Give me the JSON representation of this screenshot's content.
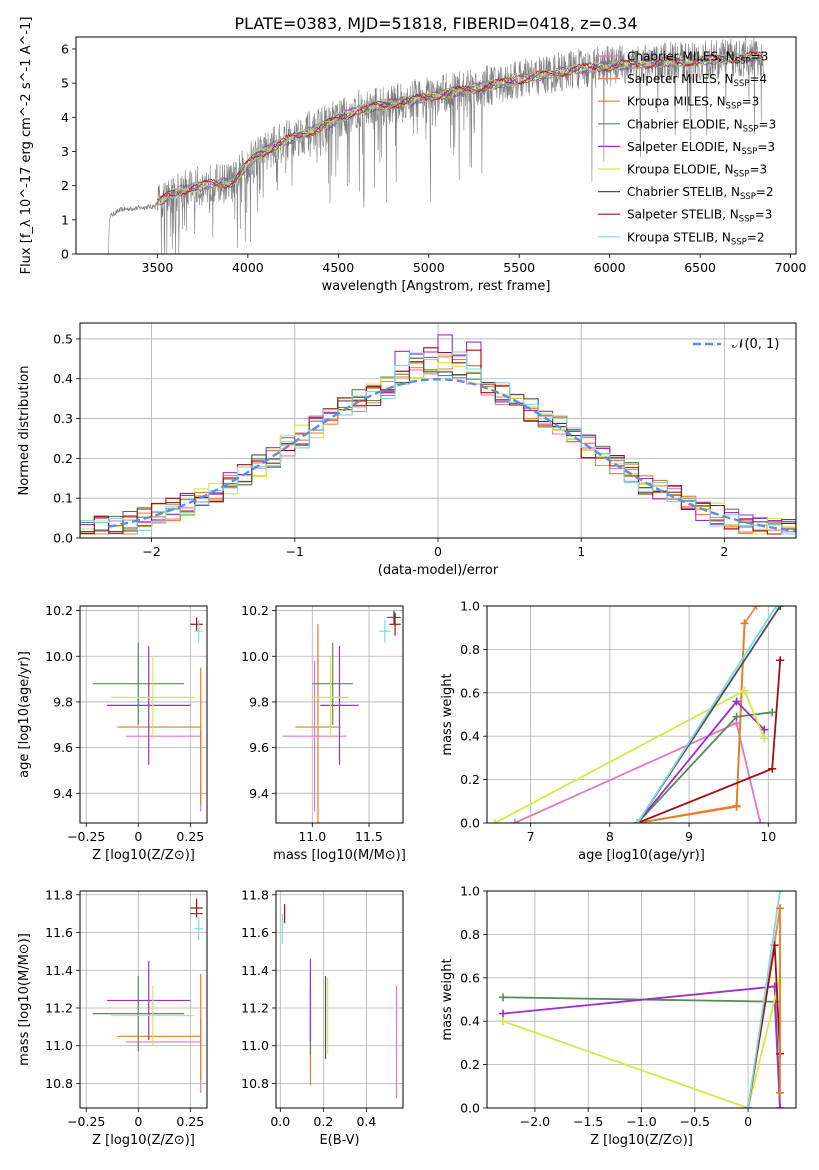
{
  "figure": {
    "title": "PLATE=0383, MJD=51818, FIBERID=0418, z=0.34"
  },
  "models": [
    {
      "name": "Chabrier MILES",
      "nssp": "3",
      "color": "#e377c2"
    },
    {
      "name": "Salpeter MILES",
      "nssp": "4",
      "color": "#ff7f50"
    },
    {
      "name": "Kroupa MILES",
      "nssp": "3",
      "color": "#e08020"
    },
    {
      "name": "Chabrier ELODIE",
      "nssp": "3",
      "color": "#5a8a5a"
    },
    {
      "name": "Salpeter ELODIE",
      "nssp": "3",
      "color": "#9b30c8"
    },
    {
      "name": "Kroupa ELODIE",
      "nssp": "3",
      "color": "#d4e84a"
    },
    {
      "name": "Chabrier STELIB",
      "nssp": "2",
      "color": "#505050"
    },
    {
      "name": "Salpeter STELIB",
      "nssp": "3",
      "color": "#a01010"
    },
    {
      "name": "Kroupa STELIB",
      "nssp": "2",
      "color": "#80d8e0"
    }
  ],
  "chart_data": [
    {
      "id": "spectrum",
      "type": "line",
      "xlabel": "wavelength [Angstrom, rest frame]",
      "ylabel": "Flux [f_λ 10^-17 erg cm^-2 s^-1 A^-1]",
      "xlim": [
        3050,
        7030
      ],
      "ylim": [
        0,
        6.35
      ],
      "xticks": [
        3500,
        4000,
        4500,
        5000,
        5500,
        6000,
        6500,
        7000
      ],
      "yticks": [
        0,
        1,
        2,
        3,
        4,
        5,
        6
      ],
      "legend": "right",
      "grid": false,
      "observed": {
        "color": "#808080",
        "x_range": [
          3230,
          6850
        ],
        "continuum_knots": [
          [
            3230,
            0
          ],
          [
            3235,
            1.1
          ],
          [
            3300,
            1.3
          ],
          [
            3400,
            1.35
          ],
          [
            3490,
            1.4
          ],
          [
            3500,
            1.5
          ],
          [
            3600,
            1.8
          ],
          [
            3700,
            1.95
          ],
          [
            3800,
            2.05
          ],
          [
            3920,
            2.1
          ],
          [
            3960,
            2.4
          ],
          [
            4050,
            2.9
          ],
          [
            4200,
            3.3
          ],
          [
            4400,
            3.7
          ],
          [
            4600,
            4.2
          ],
          [
            4800,
            4.4
          ],
          [
            5000,
            4.6
          ],
          [
            5200,
            4.8
          ],
          [
            5500,
            5.1
          ],
          [
            5800,
            5.4
          ],
          [
            6000,
            5.5
          ],
          [
            6300,
            5.6
          ],
          [
            6600,
            5.7
          ],
          [
            6850,
            5.8
          ]
        ]
      },
      "model_fit_range": [
        3500,
        6850
      ]
    },
    {
      "id": "residuals",
      "type": "histogram",
      "xlabel": "(data-model)/error",
      "ylabel": "Normed distribution",
      "xlim": [
        -2.5,
        2.5
      ],
      "ylim": [
        0,
        0.54
      ],
      "xticks": [
        -2,
        -1,
        0,
        1,
        2
      ],
      "yticks": [
        0.0,
        0.1,
        0.2,
        0.3,
        0.4,
        0.5
      ],
      "grid": true,
      "bin_width": 0.1,
      "legend": [
        {
          "label": "𝒩(0, 1)",
          "color": "#5b8fe0",
          "style": "dashed"
        }
      ],
      "normal": {
        "mean": 0,
        "sigma": 1
      },
      "series_peaks": [
        0.44,
        0.46,
        0.45,
        0.46,
        0.52,
        0.45,
        0.45,
        0.48,
        0.48
      ]
    },
    {
      "id": "age-vs-Z",
      "type": "errorbar",
      "xlabel": "Z [log10(Z/Z⊙)]",
      "ylabel": "age [log10(age/yr)]",
      "xlim": [
        -0.28,
        0.33
      ],
      "ylim": [
        9.27,
        10.22
      ],
      "xticks": [
        -0.25,
        0.0,
        0.25
      ],
      "yticks": [
        9.4,
        9.6,
        9.8,
        10.0,
        10.2
      ],
      "points": [
        {
          "model": 0,
          "x": 0.12,
          "xerr": 0.18,
          "y": 9.65,
          "yerr": 0.0
        },
        {
          "model": 0,
          "x": 0.3,
          "xerr": 0.0,
          "y": 9.5,
          "yerr": 0.18
        },
        {
          "model": 2,
          "x": 0.3,
          "xerr": 0.0,
          "y": 9.65,
          "yerr": 0.3
        },
        {
          "model": 2,
          "x": 0.1,
          "xerr": 0.2,
          "y": 9.69,
          "yerr": 0.0
        },
        {
          "model": 3,
          "x": 0.0,
          "xerr": 0.22,
          "y": 9.88,
          "yerr": 0.18
        },
        {
          "model": 4,
          "x": 0.05,
          "xerr": 0.2,
          "y": 9.785,
          "yerr": 0.26
        },
        {
          "model": 5,
          "x": 0.07,
          "xerr": 0.2,
          "y": 9.82,
          "yerr": 0.18
        },
        {
          "model": 7,
          "x": 0.28,
          "xerr": 0.03,
          "y": 10.14,
          "yerr": 0.03
        },
        {
          "model": 8,
          "x": 0.29,
          "xerr": 0.02,
          "y": 10.11,
          "yerr": 0.05
        }
      ]
    },
    {
      "id": "age-vs-mass",
      "type": "errorbar",
      "xlabel": "mass [log10(M/M⊙)]",
      "ylabel": "",
      "xlim": [
        10.68,
        11.8
      ],
      "ylim": [
        9.27,
        10.22
      ],
      "xticks": [
        11.0,
        11.5
      ],
      "yticks": [
        9.4,
        9.6,
        9.8,
        10.0,
        10.2
      ],
      "points": [
        {
          "model": 0,
          "x": 11.02,
          "xerr": 0.28,
          "y": 9.65,
          "yerr": 0.33
        },
        {
          "model": 2,
          "x": 11.05,
          "xerr": 0.2,
          "y": 9.69,
          "yerr": 0.45
        },
        {
          "model": 3,
          "x": 11.18,
          "xerr": 0.18,
          "y": 9.88,
          "yerr": 0.18
        },
        {
          "model": 4,
          "x": 11.24,
          "xerr": 0.17,
          "y": 9.785,
          "yerr": 0.26
        },
        {
          "model": 5,
          "x": 11.16,
          "xerr": 0.16,
          "y": 9.82,
          "yerr": 0.18
        },
        {
          "model": 6,
          "x": 11.72,
          "xerr": 0.06,
          "y": 10.17,
          "yerr": 0.03
        },
        {
          "model": 7,
          "x": 11.73,
          "xerr": 0.05,
          "y": 10.14,
          "yerr": 0.05
        },
        {
          "model": 8,
          "x": 11.64,
          "xerr": 0.05,
          "y": 10.11,
          "yerr": 0.05
        }
      ]
    },
    {
      "id": "mass-weight-vs-age",
      "type": "line",
      "xlabel": "age [log10(age/yr)]",
      "ylabel": "mass weight",
      "xlim": [
        6.45,
        10.35
      ],
      "ylim": [
        0,
        1
      ],
      "xticks": [
        7,
        8,
        9,
        10
      ],
      "yticks": [
        0.0,
        0.2,
        0.4,
        0.6,
        0.8,
        1.0
      ],
      "grid": true,
      "series": [
        {
          "model": 0,
          "x": [
            6.8,
            9.6,
            9.9
          ],
          "y": [
            0.0,
            0.46,
            0.0
          ]
        },
        {
          "model": 1,
          "x": [
            8.35,
            9.6,
            9.7,
            9.85
          ],
          "y": [
            0.0,
            0.08,
            0.92,
            1.0
          ]
        },
        {
          "model": 2,
          "x": [
            8.35,
            9.6,
            9.7
          ],
          "y": [
            0.0,
            0.075,
            0.92
          ]
        },
        {
          "model": 3,
          "x": [
            8.35,
            9.6,
            10.05
          ],
          "y": [
            0.0,
            0.49,
            0.51
          ]
        },
        {
          "model": 4,
          "x": [
            8.35,
            9.6,
            9.95
          ],
          "y": [
            0.0,
            0.56,
            0.43
          ]
        },
        {
          "model": 5,
          "x": [
            6.55,
            9.7,
            9.95
          ],
          "y": [
            0.0,
            0.61,
            0.39
          ]
        },
        {
          "model": 6,
          "x": [
            8.35,
            10.15
          ],
          "y": [
            0.0,
            1.0
          ]
        },
        {
          "model": 7,
          "x": [
            8.35,
            10.05,
            10.15
          ],
          "y": [
            0.0,
            0.25,
            0.75
          ]
        },
        {
          "model": 8,
          "x": [
            8.35,
            10.1
          ],
          "y": [
            0.0,
            1.0
          ]
        }
      ]
    },
    {
      "id": "mass-vs-Z",
      "type": "errorbar",
      "xlabel": "Z [log10(Z/Z⊙)]",
      "ylabel": "mass [log10(M/M⊙)]",
      "xlim": [
        -0.28,
        0.33
      ],
      "ylim": [
        10.67,
        11.82
      ],
      "xticks": [
        -0.25,
        0.0,
        0.25
      ],
      "yticks": [
        10.8,
        11.0,
        11.2,
        11.4,
        11.6,
        11.8
      ],
      "points": [
        {
          "model": 0,
          "x": 0.12,
          "xerr": 0.18,
          "y": 11.02,
          "yerr": 0.0
        },
        {
          "model": 0,
          "x": 0.3,
          "xerr": 0.0,
          "y": 10.95,
          "yerr": 0.2
        },
        {
          "model": 2,
          "x": 0.3,
          "xerr": 0.0,
          "y": 11.1,
          "yerr": 0.28
        },
        {
          "model": 2,
          "x": 0.1,
          "xerr": 0.2,
          "y": 11.05,
          "yerr": 0.0
        },
        {
          "model": 3,
          "x": 0.0,
          "xerr": 0.22,
          "y": 11.17,
          "yerr": 0.2
        },
        {
          "model": 4,
          "x": 0.05,
          "xerr": 0.2,
          "y": 11.24,
          "yerr": 0.21
        },
        {
          "model": 5,
          "x": 0.07,
          "xerr": 0.2,
          "y": 11.16,
          "yerr": 0.16
        },
        {
          "model": 6,
          "x": 0.28,
          "xerr": 0.03,
          "y": 11.7,
          "yerr": 0.0
        },
        {
          "model": 7,
          "x": 0.28,
          "xerr": 0.03,
          "y": 11.73,
          "yerr": 0.05
        },
        {
          "model": 8,
          "x": 0.29,
          "xerr": 0.02,
          "y": 11.62,
          "yerr": 0.06
        }
      ]
    },
    {
      "id": "mass-vs-EBV",
      "type": "errorbar",
      "xlabel": "E(B-V)",
      "ylabel": "",
      "xlim": [
        -0.02,
        0.57
      ],
      "ylim": [
        10.67,
        11.82
      ],
      "xticks": [
        0.0,
        0.2,
        0.4
      ],
      "yticks": [
        10.8,
        11.0,
        11.2,
        11.4,
        11.6,
        11.8
      ],
      "points": [
        {
          "model": 0,
          "x": 0.54,
          "xerr": 0.0,
          "y": 11.02,
          "yerr": 0.3
        },
        {
          "model": 2,
          "x": 0.14,
          "xerr": 0.0,
          "y": 11.05,
          "yerr": 0.26
        },
        {
          "model": 3,
          "x": 0.14,
          "xerr": 0.0,
          "y": 11.17,
          "yerr": 0.22
        },
        {
          "model": 4,
          "x": 0.14,
          "xerr": 0.0,
          "y": 11.24,
          "yerr": 0.22
        },
        {
          "model": 5,
          "x": 0.22,
          "xerr": 0.0,
          "y": 11.16,
          "yerr": 0.2
        },
        {
          "model": 6,
          "x": 0.21,
          "xerr": 0.0,
          "y": 11.15,
          "yerr": 0.22
        },
        {
          "model": 7,
          "x": 0.02,
          "xerr": 0.0,
          "y": 11.7,
          "yerr": 0.05
        },
        {
          "model": 8,
          "x": 0.01,
          "xerr": 0.0,
          "y": 11.62,
          "yerr": 0.08
        }
      ]
    },
    {
      "id": "mass-weight-vs-Z",
      "type": "line",
      "xlabel": "Z [log10(Z/Z⊙)]",
      "ylabel": "mass weight",
      "xlim": [
        -2.45,
        0.45
      ],
      "ylim": [
        0,
        1
      ],
      "xticks": [
        -2.0,
        -1.5,
        -1.0,
        -0.5,
        0.0
      ],
      "yticks": [
        0.0,
        0.2,
        0.4,
        0.6,
        0.8,
        1.0
      ],
      "grid": true,
      "series": [
        {
          "model": 3,
          "x": [
            -2.3,
            0.25,
            0.3
          ],
          "y": [
            0.51,
            0.49,
            0.0
          ]
        },
        {
          "model": 4,
          "x": [
            -2.3,
            0.25,
            0.3
          ],
          "y": [
            0.435,
            0.56,
            0.0
          ]
        },
        {
          "model": 5,
          "x": [
            -2.3,
            0.0,
            0.3
          ],
          "y": [
            0.4,
            0.0,
            0.6
          ]
        },
        {
          "model": 1,
          "x": [
            0.0,
            0.3
          ],
          "y": [
            0.0,
            0.92
          ]
        },
        {
          "model": 7,
          "x": [
            0.0,
            0.25,
            0.3
          ],
          "y": [
            0.0,
            0.75,
            0.25
          ]
        },
        {
          "model": 8,
          "x": [
            0.0,
            0.3
          ],
          "y": [
            0.0,
            1.0
          ]
        },
        {
          "model": 2,
          "x": [
            0.3,
            0.3
          ],
          "y": [
            0.07,
            0.92
          ]
        }
      ]
    }
  ]
}
